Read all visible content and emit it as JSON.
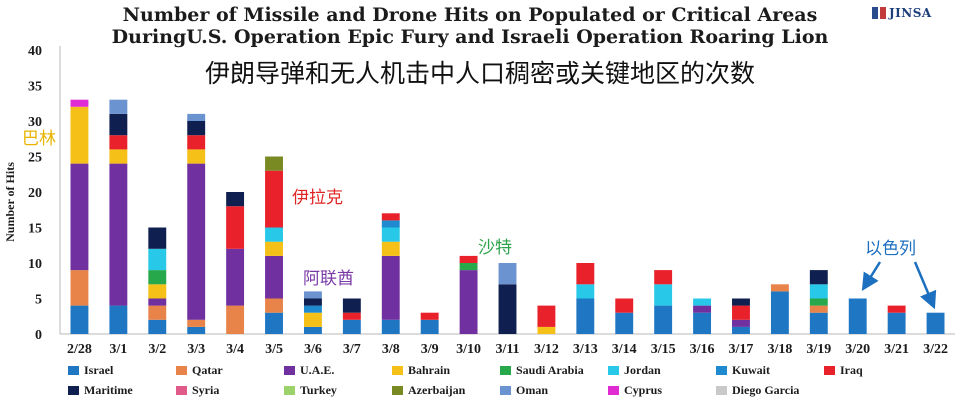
{
  "header": {
    "title_line1": "Number of Missile and Drone Hits on Populated or Critical Areas",
    "title_line2": "DuringU.S. Operation Epic Fury and Israeli Operation Roaring Lion",
    "subtitle_cn": "伊朗导弹和无人机击中人口稠密或关键地区的次数",
    "logo_text": "JINSA"
  },
  "annotations": {
    "bahrain": "巴林",
    "iraq": "伊拉克",
    "uae": "阿联酋",
    "saudi": "沙特",
    "israel": "以色列"
  },
  "chart_data": {
    "type": "bar",
    "stacked": true,
    "title": "Number of Missile and Drone Hits on Populated or Critical Areas DuringU.S. Operation Epic Fury and Israeli Operation Roaring Lion",
    "xlabel": "",
    "ylabel": "Number of Hits",
    "ylim": [
      0,
      40
    ],
    "yticks": [
      0,
      5,
      10,
      15,
      20,
      25,
      30,
      35,
      40
    ],
    "grid": false,
    "legend_position": "bottom",
    "categories": [
      "2/28",
      "3/1",
      "3/2",
      "3/3",
      "3/4",
      "3/5",
      "3/6",
      "3/7",
      "3/8",
      "3/9",
      "3/10",
      "3/11",
      "3/12",
      "3/13",
      "3/14",
      "3/15",
      "3/16",
      "3/17",
      "3/18",
      "3/19",
      "3/20",
      "3/21",
      "3/22"
    ],
    "series": [
      {
        "name": "Israel",
        "color": "#1f77c4",
        "values": [
          4,
          4,
          2,
          1,
          0,
          3,
          1,
          2,
          2,
          2,
          0,
          0,
          0,
          5,
          3,
          4,
          3,
          1,
          6,
          3,
          5,
          3,
          3
        ]
      },
      {
        "name": "Qatar",
        "color": "#e8844a",
        "values": [
          5,
          0,
          2,
          1,
          4,
          2,
          0,
          0,
          0,
          0,
          0,
          0,
          0,
          0,
          0,
          0,
          0,
          0,
          1,
          1,
          0,
          0,
          0
        ]
      },
      {
        "name": "U.A.E.",
        "color": "#7030a0",
        "values": [
          15,
          20,
          1,
          22,
          8,
          6,
          0,
          0,
          9,
          0,
          9,
          0,
          0,
          0,
          0,
          0,
          1,
          1,
          0,
          0,
          0,
          0,
          0
        ]
      },
      {
        "name": "Bahrain",
        "color": "#f5c018",
        "values": [
          8,
          2,
          2,
          2,
          0,
          2,
          2,
          0,
          2,
          0,
          0,
          0,
          1,
          0,
          0,
          0,
          0,
          0,
          0,
          0,
          0,
          0,
          0
        ]
      },
      {
        "name": "Saudi Arabia",
        "color": "#27a84a",
        "values": [
          0,
          0,
          2,
          0,
          0,
          0,
          0,
          0,
          0,
          0,
          1,
          0,
          0,
          0,
          0,
          0,
          0,
          0,
          0,
          1,
          0,
          0,
          0
        ]
      },
      {
        "name": "Jordan",
        "color": "#27c8e8",
        "values": [
          0,
          0,
          3,
          0,
          0,
          2,
          0,
          0,
          2,
          0,
          0,
          0,
          0,
          2,
          0,
          3,
          1,
          0,
          0,
          2,
          0,
          0,
          0
        ]
      },
      {
        "name": "Kuwait",
        "color": "#1f8ad0",
        "values": [
          0,
          0,
          0,
          0,
          0,
          0,
          1,
          0,
          1,
          0,
          0,
          0,
          0,
          0,
          0,
          0,
          0,
          0,
          0,
          0,
          0,
          0,
          0
        ]
      },
      {
        "name": "Iraq",
        "color": "#e8212b",
        "values": [
          0,
          2,
          0,
          2,
          6,
          8,
          0,
          1,
          1,
          1,
          1,
          0,
          3,
          3,
          2,
          2,
          0,
          2,
          0,
          0,
          0,
          1,
          0
        ]
      },
      {
        "name": "Maritime",
        "color": "#0f1f4f",
        "values": [
          0,
          3,
          3,
          2,
          2,
          0,
          1,
          2,
          0,
          0,
          0,
          7,
          0,
          0,
          0,
          0,
          0,
          1,
          0,
          2,
          0,
          0,
          0
        ]
      },
      {
        "name": "Syria",
        "color": "#e05a8a",
        "values": [
          0,
          0,
          0,
          0,
          0,
          0,
          0,
          0,
          0,
          0,
          0,
          0,
          0,
          0,
          0,
          0,
          0,
          0,
          0,
          0,
          0,
          0,
          0
        ]
      },
      {
        "name": "Turkey",
        "color": "#9bd36a",
        "values": [
          0,
          0,
          0,
          0,
          0,
          0,
          0,
          0,
          0,
          0,
          0,
          0,
          0,
          0,
          0,
          0,
          0,
          0,
          0,
          0,
          0,
          0,
          0
        ]
      },
      {
        "name": "Azerbaijan",
        "color": "#7a8a23",
        "values": [
          0,
          0,
          0,
          0,
          0,
          2,
          0,
          0,
          0,
          0,
          0,
          0,
          0,
          0,
          0,
          0,
          0,
          0,
          0,
          0,
          0,
          0,
          0
        ]
      },
      {
        "name": "Oman",
        "color": "#6a93cf",
        "values": [
          0,
          2,
          0,
          1,
          0,
          0,
          1,
          0,
          0,
          0,
          0,
          3,
          0,
          0,
          0,
          0,
          0,
          0,
          0,
          0,
          0,
          0,
          0
        ]
      },
      {
        "name": "Cyprus",
        "color": "#e02bd2",
        "values": [
          1,
          0,
          0,
          0,
          0,
          0,
          0,
          0,
          0,
          0,
          0,
          0,
          0,
          0,
          0,
          0,
          0,
          0,
          0,
          0,
          0,
          0,
          0
        ]
      },
      {
        "name": "Diego Garcia",
        "color": "#c9c9c9",
        "values": [
          0,
          0,
          0,
          0,
          0,
          0,
          0,
          0,
          0,
          0,
          0,
          0,
          0,
          0,
          0,
          0,
          0,
          0,
          0,
          0,
          0,
          0,
          0
        ]
      }
    ]
  }
}
